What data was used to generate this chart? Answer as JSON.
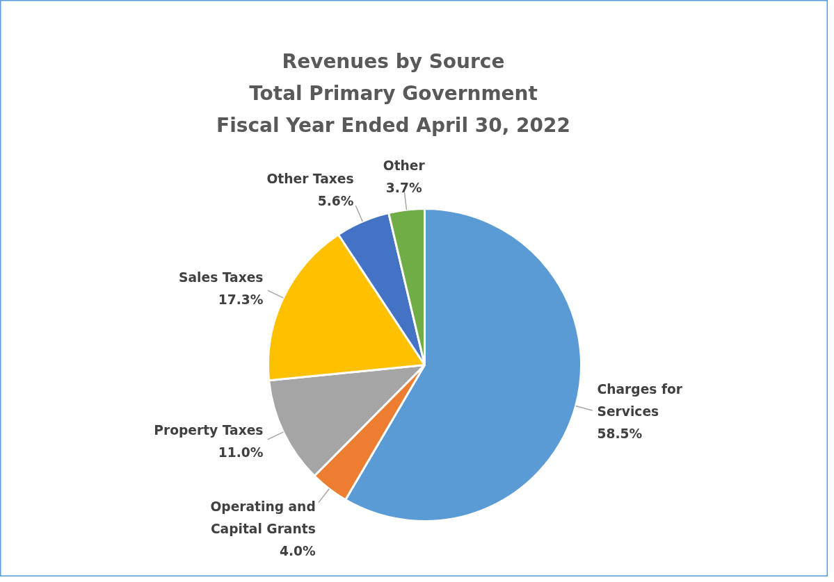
{
  "chart_data": {
    "type": "pie",
    "title": "Revenues by Source\nTotal Primary Government\nFiscal Year Ended April 30, 2022",
    "categories": [
      "Charges for Services",
      "Operating and Capital Grants",
      "Property Taxes",
      "Sales Taxes",
      "Other Taxes",
      "Other"
    ],
    "values": [
      58.5,
      4.0,
      11.0,
      17.3,
      5.6,
      3.7
    ],
    "value_labels": [
      "58.5%",
      "4.0%",
      "11.0%",
      "17.3%",
      "5.6%",
      "3.7%"
    ],
    "colors": [
      "#5b9bd5",
      "#ed7d31",
      "#a5a5a5",
      "#ffc000",
      "#4472c4",
      "#70ad47"
    ]
  }
}
